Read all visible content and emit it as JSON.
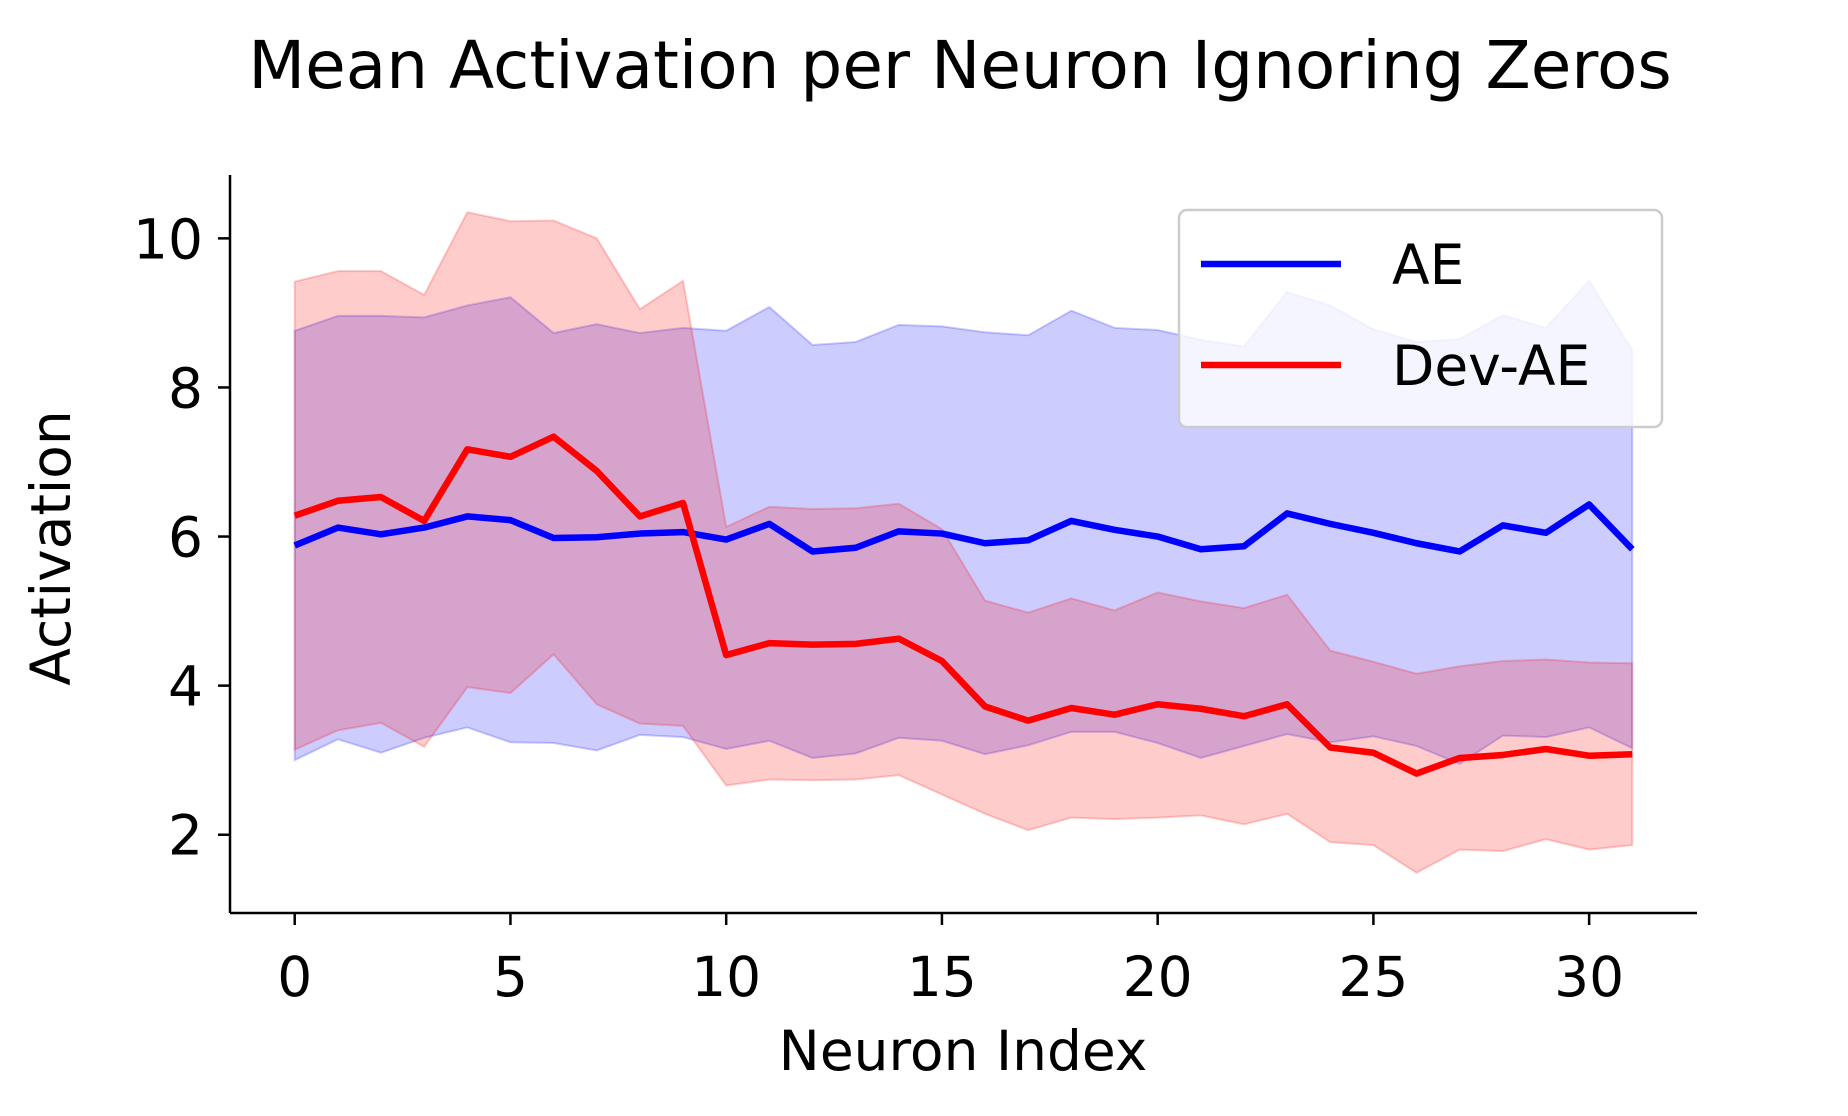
{
  "chart_data": {
    "type": "line",
    "title": "Mean Activation per Neuron Ignoring Zeros",
    "xlabel": "Neuron Index",
    "ylabel": "Activation",
    "xlim": [
      -1.5,
      32.5
    ],
    "ylim": [
      0.95,
      10.85
    ],
    "xticks": [
      0,
      5,
      10,
      15,
      20,
      25,
      30
    ],
    "yticks": [
      2,
      4,
      6,
      8,
      10
    ],
    "grid": false,
    "legend_position": "top-right",
    "x": [
      0,
      1,
      2,
      3,
      4,
      5,
      6,
      7,
      8,
      9,
      10,
      11,
      12,
      13,
      14,
      15,
      16,
      17,
      18,
      19,
      20,
      21,
      22,
      23,
      24,
      25,
      26,
      27,
      28,
      29,
      30,
      31
    ],
    "series": [
      {
        "name": "AE",
        "color": "#0000ff",
        "band_color": "#0000ff",
        "mean": [
          5.88,
          6.12,
          6.03,
          6.12,
          6.27,
          6.22,
          5.98,
          5.99,
          6.04,
          6.06,
          5.96,
          6.17,
          5.8,
          5.85,
          6.07,
          6.04,
          5.91,
          5.95,
          6.21,
          6.09,
          6.0,
          5.83,
          5.87,
          6.31,
          6.17,
          6.05,
          5.91,
          5.8,
          6.15,
          6.05,
          6.43,
          5.83
        ],
        "upper": [
          8.76,
          8.96,
          8.96,
          8.94,
          9.1,
          9.21,
          8.73,
          8.85,
          8.73,
          8.8,
          8.76,
          9.08,
          8.57,
          8.61,
          8.84,
          8.82,
          8.74,
          8.7,
          9.03,
          8.8,
          8.77,
          8.64,
          8.55,
          9.28,
          9.1,
          8.78,
          8.61,
          8.65,
          8.97,
          8.8,
          9.43,
          8.5
        ],
        "lower": [
          3.0,
          3.28,
          3.1,
          3.3,
          3.44,
          3.24,
          3.23,
          3.13,
          3.34,
          3.31,
          3.15,
          3.26,
          3.03,
          3.09,
          3.3,
          3.26,
          3.08,
          3.2,
          3.38,
          3.38,
          3.23,
          3.03,
          3.19,
          3.35,
          3.24,
          3.32,
          3.19,
          2.95,
          3.33,
          3.31,
          3.44,
          3.16
        ]
      },
      {
        "name": "Dev-AE",
        "color": "#ff0000",
        "band_color": "#ff0000",
        "mean": [
          6.28,
          6.48,
          6.53,
          6.21,
          7.17,
          7.07,
          7.34,
          6.88,
          6.27,
          6.45,
          4.41,
          4.57,
          4.55,
          4.56,
          4.63,
          4.33,
          3.72,
          3.53,
          3.7,
          3.61,
          3.75,
          3.69,
          3.59,
          3.75,
          3.17,
          3.1,
          2.82,
          3.03,
          3.07,
          3.15,
          3.06,
          3.08
        ],
        "upper": [
          9.42,
          9.56,
          9.56,
          9.24,
          10.35,
          10.23,
          10.24,
          10.0,
          9.05,
          9.43,
          6.13,
          6.4,
          6.37,
          6.38,
          6.44,
          6.1,
          5.14,
          4.98,
          5.17,
          5.01,
          5.25,
          5.13,
          5.04,
          5.22,
          4.47,
          4.32,
          4.16,
          4.26,
          4.33,
          4.35,
          4.31,
          4.3
        ],
        "lower": [
          3.14,
          3.4,
          3.5,
          3.18,
          3.98,
          3.9,
          4.42,
          3.75,
          3.49,
          3.46,
          2.66,
          2.74,
          2.73,
          2.74,
          2.8,
          2.54,
          2.28,
          2.06,
          2.23,
          2.21,
          2.23,
          2.26,
          2.14,
          2.28,
          1.9,
          1.86,
          1.49,
          1.8,
          1.78,
          1.94,
          1.8,
          1.86
        ]
      }
    ]
  }
}
